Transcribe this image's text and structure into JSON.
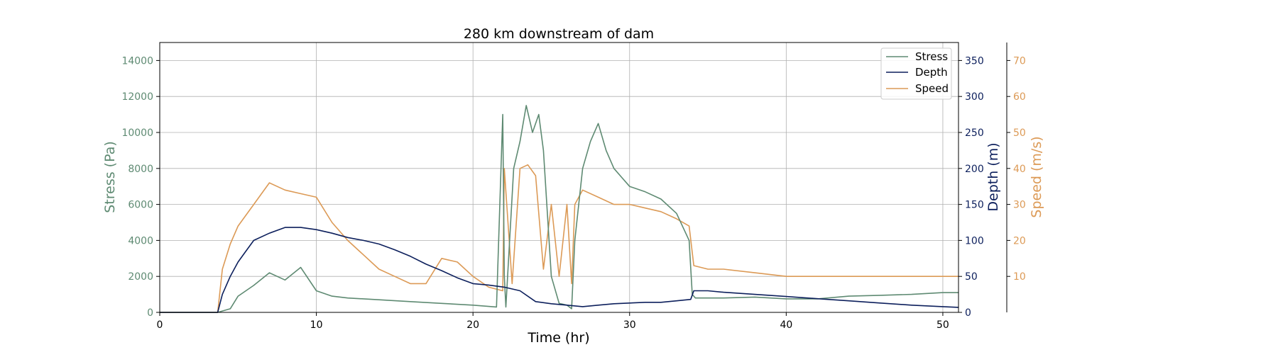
{
  "chart_data": {
    "type": "line",
    "title": "280 km downstream of dam",
    "xlabel": "Time (hr)",
    "xlim": [
      0,
      51
    ],
    "xticks": [
      0,
      10,
      20,
      30,
      40,
      50
    ],
    "grid": true,
    "legend_position": "top-right",
    "axes": {
      "stress": {
        "label": "Stress (Pa)",
        "color": "#5e8a72",
        "ylim": [
          0,
          15000
        ],
        "ticks": [
          0,
          2000,
          4000,
          6000,
          8000,
          10000,
          12000,
          14000
        ]
      },
      "depth": {
        "label": "Depth (m)",
        "color": "#0c1f5c",
        "ylim": [
          0,
          375
        ],
        "ticks": [
          0,
          50,
          100,
          150,
          200,
          250,
          300,
          350
        ]
      },
      "speed": {
        "label": "Speed (m/s)",
        "color": "#dc9a56",
        "ylim": [
          0,
          75
        ],
        "ticks": [
          10,
          20,
          30,
          40,
          50,
          60,
          70
        ]
      }
    },
    "series": [
      {
        "name": "Stress",
        "axis": "stress",
        "color": "#5e8a72",
        "x": [
          0,
          3.7,
          4.5,
          5,
          6,
          7,
          8,
          9,
          10,
          11,
          12,
          14,
          16,
          18,
          20,
          21.5,
          21.9,
          22.0,
          22.1,
          22.6,
          23.0,
          23.4,
          23.8,
          24.2,
          24.5,
          25.0,
          25.5,
          26.0,
          26.3,
          26.5,
          27,
          27.5,
          28,
          28.5,
          29,
          29.5,
          30,
          31,
          32,
          33,
          33.8,
          34.0,
          34.2,
          35,
          36,
          38,
          40,
          42,
          44,
          46,
          48,
          50,
          51
        ],
        "y": [
          0,
          0,
          200,
          900,
          1500,
          2200,
          1800,
          2500,
          1200,
          900,
          800,
          700,
          600,
          500,
          400,
          300,
          11000,
          2000,
          300,
          8000,
          9500,
          11500,
          10000,
          11000,
          9000,
          2000,
          500,
          400,
          200,
          4000,
          8000,
          9500,
          10500,
          9000,
          8000,
          7500,
          7000,
          6700,
          6300,
          5500,
          4000,
          1000,
          800,
          800,
          800,
          850,
          750,
          750,
          900,
          950,
          1000,
          1100,
          1100
        ]
      },
      {
        "name": "Depth",
        "axis": "depth",
        "color": "#0c1f5c",
        "x": [
          0,
          3.7,
          4,
          4.5,
          5,
          5.5,
          6,
          7,
          8,
          9,
          10,
          11,
          12,
          13,
          14,
          15,
          16,
          17,
          18,
          19,
          20,
          21,
          22,
          23,
          24,
          25,
          26,
          27,
          28,
          29,
          30,
          31,
          32,
          33,
          33.9,
          34.1,
          35,
          36,
          38,
          40,
          42,
          44,
          46,
          48,
          50,
          51
        ],
        "y": [
          0,
          0,
          25,
          50,
          70,
          85,
          100,
          110,
          118,
          118,
          115,
          110,
          104,
          100,
          95,
          87,
          78,
          67,
          58,
          48,
          40,
          38,
          35,
          30,
          15,
          12,
          10,
          8,
          10,
          12,
          13,
          14,
          14,
          16,
          18,
          30,
          30,
          28,
          25,
          22,
          19,
          16,
          13,
          10,
          8,
          7
        ]
      },
      {
        "name": "Speed",
        "axis": "speed",
        "color": "#dc9a56",
        "x": [
          0,
          3.7,
          4.0,
          4.5,
          5,
          6,
          7,
          8,
          9,
          10,
          11,
          12,
          13,
          14,
          15,
          16,
          17,
          18,
          19,
          20,
          21,
          21.9,
          22.0,
          22.5,
          23,
          23.5,
          24,
          24.5,
          25,
          25.5,
          26,
          26.3,
          26.5,
          27,
          28,
          29,
          30,
          31,
          32,
          33,
          33.8,
          34.1,
          35,
          36,
          38,
          40,
          42,
          44,
          46,
          48,
          50,
          51
        ],
        "y": [
          0,
          0,
          12,
          19,
          24,
          30,
          36,
          34,
          33,
          32,
          25,
          20,
          16,
          12,
          10,
          8,
          8,
          15,
          14,
          10,
          7,
          6,
          40,
          8,
          40,
          41,
          38,
          12,
          30,
          10,
          30,
          8,
          30,
          34,
          32,
          30,
          30,
          29,
          28,
          26,
          24,
          13,
          12,
          12,
          11,
          10,
          10,
          10,
          10,
          10,
          10,
          10
        ]
      }
    ]
  }
}
